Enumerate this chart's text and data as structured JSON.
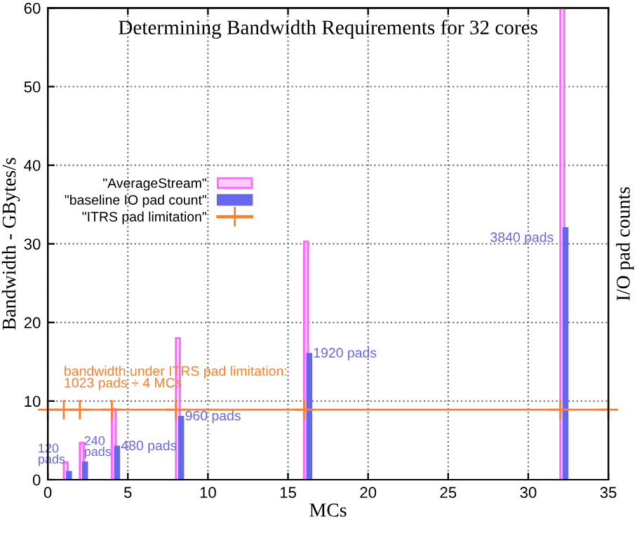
{
  "chart_data": {
    "type": "bar",
    "title": "Determining Bandwidth Requirements for 32 cores",
    "xlabel": "MCs",
    "ylabel": "Bandwidth - GBytes/s",
    "y2label": "I/O pad counts",
    "xlim": [
      0,
      35
    ],
    "xticks": [
      0,
      5,
      10,
      15,
      20,
      25,
      30,
      35
    ],
    "ylim": [
      0,
      60
    ],
    "yticks": [
      0,
      10,
      20,
      30,
      40,
      50,
      60
    ],
    "grid": true,
    "legend": "left",
    "series": [
      {
        "name": "\"AverageStream\"",
        "color": "#ff66ff",
        "x": [
          1,
          2,
          4,
          8,
          16,
          32
        ],
        "values": [
          2.2,
          4.7,
          9,
          18,
          30.3,
          60
        ]
      },
      {
        "name": "\"baseline IO pad count\"",
        "color": "#6666ee",
        "x": [
          1.2,
          2.2,
          4.2,
          8.2,
          16.2,
          32.2
        ],
        "values": [
          1,
          2.2,
          4.2,
          8,
          16,
          32
        ]
      },
      {
        "name": "\"ITRS pad limitation\"",
        "type": "line",
        "marker": "cross",
        "color": "#ff7f2a",
        "x": [
          0,
          1,
          2,
          4,
          8,
          16,
          32,
          35
        ],
        "values": [
          8.9,
          8.9,
          8.9,
          8.9,
          8.9,
          8.9,
          8.9,
          8.9
        ]
      }
    ],
    "annotations": [
      {
        "text": "bandwidth under ITRS pad limitation:\n1023 pads ÷ 4 MCs",
        "x": 1,
        "y": 8.9
      },
      {
        "text": "120\npads",
        "x": 1.2,
        "y": 1
      },
      {
        "text": "240\npads",
        "x": 2.2,
        "y": 2.2
      },
      {
        "text": "480 pads",
        "x": 4.2,
        "y": 4.2
      },
      {
        "text": "960 pads",
        "x": 8.2,
        "y": 8
      },
      {
        "text": "1920 pads",
        "x": 16.2,
        "y": 16
      },
      {
        "text": "3840 pads",
        "x": 32.2,
        "y": 32
      }
    ]
  }
}
